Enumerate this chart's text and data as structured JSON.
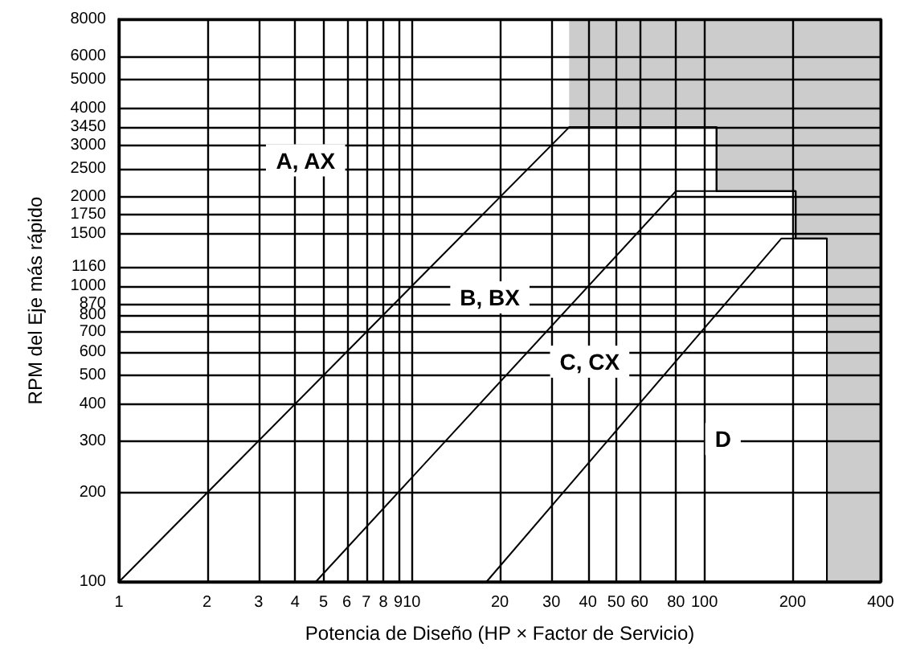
{
  "chart_data": {
    "type": "line",
    "xlabel": "Potencia de Diseño (HP × Factor de Servicio)",
    "ylabel": "RPM del Eje más rápido",
    "log": "xy",
    "grid": true,
    "marker": "none",
    "line_style": "solid",
    "xlim": [
      1,
      400
    ],
    "xticks": [
      1,
      2,
      3,
      4,
      5,
      6,
      7,
      8,
      9,
      10,
      20,
      30,
      40,
      50,
      60,
      80,
      100,
      200,
      400
    ],
    "ylim": [
      100,
      8000
    ],
    "yticks": [
      100,
      200,
      300,
      400,
      500,
      600,
      700,
      800,
      870,
      1000,
      1160,
      1500,
      1750,
      2000,
      2500,
      3000,
      3450,
      4000,
      5000,
      6000,
      8000
    ],
    "series": [
      {
        "color": "#000000",
        "x": [
          34.5,
          110,
          110,
          205,
          205,
          262,
          262,
          400
        ],
        "values": [
          3450,
          3450,
          2100,
          2100,
          1450,
          1450,
          100,
          100
        ],
        "lower": [
          3450,
          3450,
          2100,
          2100,
          1450,
          1450,
          100,
          100
        ],
        "upper": [
          8000,
          8000,
          8000,
          8000,
          8000,
          8000,
          8000,
          8000
        ]
      },
      {
        "color": "#000000",
        "x": [
          1,
          34.5,
          110,
          110
        ],
        "values": [
          100,
          3450,
          3450,
          2100
        ]
      },
      {
        "color": "#000000",
        "x": [
          4.7,
          80,
          205,
          205
        ],
        "values": [
          100,
          2100,
          2100,
          1450
        ]
      },
      {
        "color": "#000000",
        "x": [
          18,
          183,
          262,
          262
        ],
        "values": [
          100,
          1450,
          1450,
          100
        ]
      }
    ],
    "annotations": [
      "A, AX",
      "B, BX",
      "C, CX",
      "D"
    ]
  }
}
